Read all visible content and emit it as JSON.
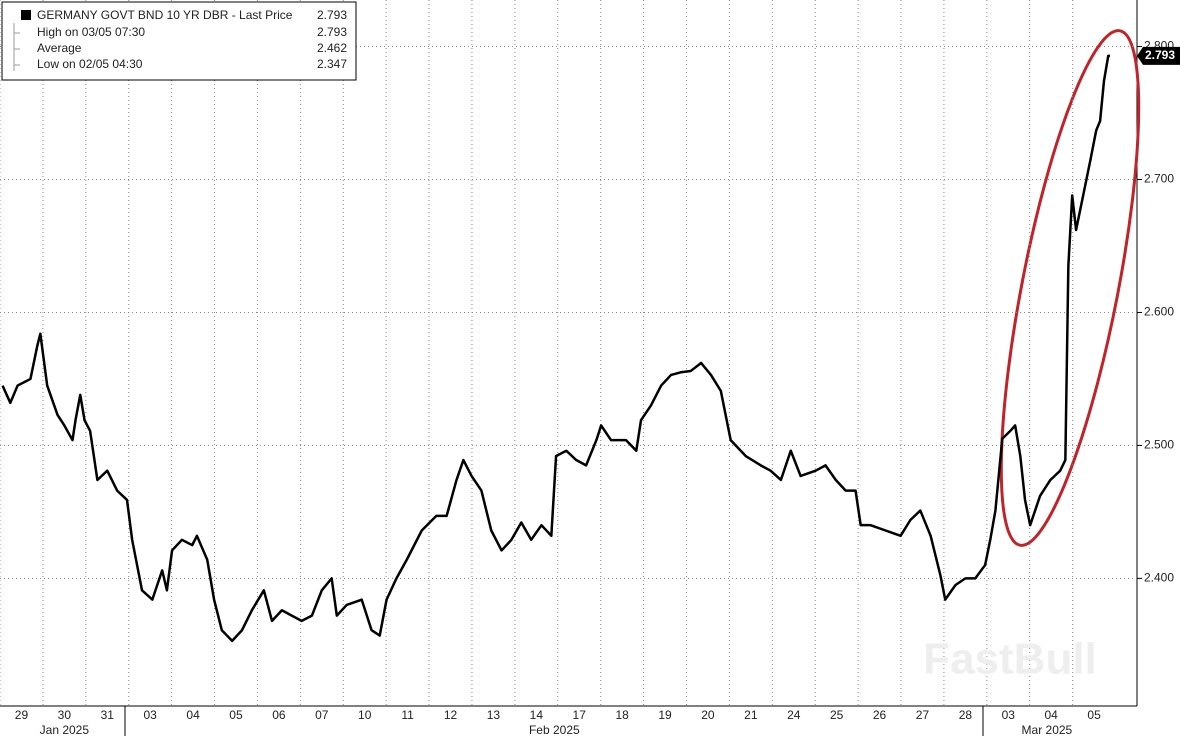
{
  "chart_data": {
    "type": "line",
    "series": [
      {
        "name": "GERMANY GOVT BND 10 YR DBR - Last Price",
        "color": "#000000",
        "x": [
          0.06,
          0.24,
          0.41,
          0.71,
          0.87,
          0.94,
          1.1,
          1.34,
          1.5,
          1.69,
          1.76,
          1.87,
          1.97,
          2.1,
          2.27,
          2.5,
          2.73,
          2.96,
          3.08,
          3.31,
          3.55,
          3.78,
          3.89,
          4.01,
          4.24,
          4.48,
          4.59,
          4.83,
          4.99,
          5.17,
          5.41,
          5.64,
          5.87,
          6.15,
          6.34,
          6.57,
          6.8,
          7.03,
          7.27,
          7.5,
          7.73,
          7.85,
          8.08,
          8.43,
          8.66,
          8.85,
          9.01,
          9.24,
          9.48,
          9.83,
          10.17,
          10.41,
          10.64,
          10.8,
          10.99,
          11.22,
          11.45,
          11.69,
          11.92,
          12.15,
          12.38,
          12.62,
          12.85,
          12.96,
          13.2,
          13.43,
          13.66,
          13.9,
          14.01,
          14.24,
          14.59,
          14.83,
          14.94,
          15.17,
          15.41,
          15.64,
          15.87,
          16.1,
          16.34,
          16.57,
          16.8,
          17.03,
          17.38,
          17.73,
          17.96,
          18.2,
          18.43,
          18.66,
          19.01,
          19.24,
          19.48,
          19.71,
          19.94,
          20.06,
          20.29,
          20.64,
          20.99,
          21.22,
          21.45,
          21.69,
          21.92,
          22.03,
          22.27,
          22.5,
          22.73,
          22.96,
          23.08,
          23.2,
          23.36,
          23.55,
          23.66,
          23.78,
          23.89,
          24.01,
          24.24,
          24.48,
          24.71,
          24.83,
          24.9,
          24.99,
          25.08,
          25.22,
          25.41,
          25.55,
          25.64,
          25.73,
          25.83,
          25.87
        ],
        "values": [
          2.545,
          2.532,
          2.545,
          2.55,
          2.575,
          2.584,
          2.545,
          2.523,
          2.515,
          2.504,
          2.519,
          2.538,
          2.519,
          2.511,
          2.474,
          2.481,
          2.466,
          2.459,
          2.429,
          2.391,
          2.384,
          2.406,
          2.391,
          2.421,
          2.429,
          2.425,
          2.432,
          2.414,
          2.384,
          2.361,
          2.353,
          2.361,
          2.376,
          2.391,
          2.368,
          2.376,
          2.372,
          2.368,
          2.372,
          2.391,
          2.4,
          2.372,
          2.38,
          2.384,
          2.361,
          2.357,
          2.384,
          2.4,
          2.414,
          2.436,
          2.447,
          2.447,
          2.474,
          2.489,
          2.477,
          2.466,
          2.436,
          2.421,
          2.429,
          2.442,
          2.429,
          2.44,
          2.432,
          2.492,
          2.496,
          2.489,
          2.485,
          2.504,
          2.515,
          2.504,
          2.504,
          2.496,
          2.519,
          2.53,
          2.545,
          2.553,
          2.555,
          2.556,
          2.562,
          2.553,
          2.541,
          2.504,
          2.492,
          2.485,
          2.481,
          2.474,
          2.496,
          2.477,
          2.481,
          2.485,
          2.474,
          2.466,
          2.466,
          2.44,
          2.44,
          2.436,
          2.432,
          2.444,
          2.451,
          2.432,
          2.402,
          2.384,
          2.395,
          2.4,
          2.4,
          2.41,
          2.429,
          2.451,
          2.505,
          2.511,
          2.515,
          2.492,
          2.459,
          2.44,
          2.462,
          2.474,
          2.481,
          2.489,
          2.635,
          2.688,
          2.662,
          2.684,
          2.714,
          2.737,
          2.744,
          2.774,
          2.793,
          2.793
        ]
      }
    ],
    "xlim": [
      0,
      26.5
    ],
    "xticks": [
      {
        "value": 0.5,
        "label": "29"
      },
      {
        "value": 1.5,
        "label": "30"
      },
      {
        "value": 2.5,
        "label": "31"
      },
      {
        "value": 3.5,
        "label": "03"
      },
      {
        "value": 4.5,
        "label": "04"
      },
      {
        "value": 5.5,
        "label": "05"
      },
      {
        "value": 6.5,
        "label": "06"
      },
      {
        "value": 7.5,
        "label": "07"
      },
      {
        "value": 8.5,
        "label": "10"
      },
      {
        "value": 9.5,
        "label": "11"
      },
      {
        "value": 10.5,
        "label": "12"
      },
      {
        "value": 11.5,
        "label": "13"
      },
      {
        "value": 12.5,
        "label": "14"
      },
      {
        "value": 13.5,
        "label": "17"
      },
      {
        "value": 14.5,
        "label": "18"
      },
      {
        "value": 15.5,
        "label": "19"
      },
      {
        "value": 16.5,
        "label": "20"
      },
      {
        "value": 17.5,
        "label": "21"
      },
      {
        "value": 18.5,
        "label": "24"
      },
      {
        "value": 19.5,
        "label": "25"
      },
      {
        "value": 20.5,
        "label": "26"
      },
      {
        "value": 21.5,
        "label": "27"
      },
      {
        "value": 22.5,
        "label": "28"
      },
      {
        "value": 23.5,
        "label": "03"
      },
      {
        "value": 24.5,
        "label": "04"
      },
      {
        "value": 25.5,
        "label": "05"
      }
    ],
    "months": [
      {
        "value": 1.5,
        "label": "Jan 2025"
      },
      {
        "value": 12.92,
        "label": "Feb 2025"
      },
      {
        "value": 24.4,
        "label": "Mar 2025"
      }
    ],
    "ylim": [
      2.304,
      2.835
    ],
    "yticks": [
      {
        "value": 2.4,
        "label": "2.400"
      },
      {
        "value": 2.5,
        "label": "2.500"
      },
      {
        "value": 2.6,
        "label": "2.600"
      },
      {
        "value": 2.7,
        "label": "2.700"
      },
      {
        "value": 2.8,
        "label": "2.800"
      }
    ],
    "grid": true,
    "legend_stats": [
      {
        "label": "High on 03/05 07:30",
        "value": 2.793
      },
      {
        "label": "Average",
        "value": 2.462
      },
      {
        "label": "Low on 02/05 04:30",
        "value": 2.347
      }
    ],
    "legend_last": 2.793,
    "watermark": "FastBull"
  }
}
